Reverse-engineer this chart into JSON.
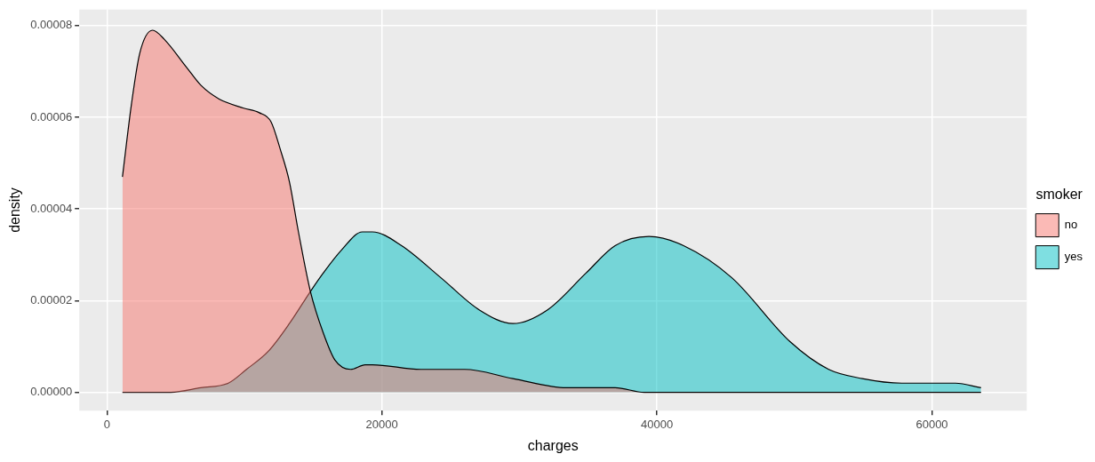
{
  "chart_data": {
    "type": "area",
    "xlabel": "charges",
    "ylabel": "density",
    "legend_title": "smoker",
    "legend": "right",
    "grid": true,
    "line_style": "solid",
    "marker": "none",
    "xlim": [
      -2010,
      66900
    ],
    "xticks": [
      0,
      20000,
      40000,
      60000
    ],
    "ylim": [
      -4e-06,
      8.35e-05
    ],
    "yticks": [
      {
        "value": 0,
        "label": "0.00000"
      },
      {
        "value": 2e-05,
        "label": "0.00002"
      },
      {
        "value": 4e-05,
        "label": "0.00004"
      },
      {
        "value": 6e-05,
        "label": "0.00006"
      },
      {
        "value": 8e-05,
        "label": "0.00008"
      }
    ],
    "series": [
      {
        "name": "no",
        "color": "#f8766d",
        "x": [
          1130,
          1790,
          2390,
          3320,
          4180,
          5770,
          6830,
          8160,
          9950,
          11080,
          11940,
          12610,
          13270,
          13930,
          14800,
          15730,
          16590,
          17720,
          18780,
          19310,
          22830,
          26010,
          29530,
          33440,
          36960,
          39080,
          63570
        ],
        "values": [
          4.7e-05,
          6.3e-05,
          7.4e-05,
          7.9e-05,
          7.7e-05,
          7.1e-05,
          6.7e-05,
          6.4e-05,
          6.2e-05,
          6.1e-05,
          5.9e-05,
          5.3e-05,
          4.6e-05,
          3.5e-05,
          2.2e-05,
          1.3e-05,
          7e-06,
          5e-06,
          6e-06,
          6e-06,
          5e-06,
          5e-06,
          3e-06,
          1e-06,
          1e-06,
          0,
          0
        ]
      },
      {
        "name": "yes",
        "color": "#00bfc4",
        "x": [
          1130,
          4640,
          6830,
          8830,
          10150,
          11750,
          13270,
          14800,
          15730,
          17050,
          18580,
          19310,
          21430,
          24290,
          27070,
          29530,
          32050,
          34840,
          36960,
          39420,
          41940,
          45450,
          49700,
          52490,
          54940,
          57800,
          59190,
          61710,
          63570
        ],
        "values": [
          0,
          0,
          1e-06,
          2e-06,
          5e-06,
          9e-06,
          1.5e-05,
          2.2e-05,
          2.6e-05,
          3.1e-05,
          3.5e-05,
          3.5e-05,
          3.2e-05,
          2.5e-05,
          1.8e-05,
          1.5e-05,
          1.8e-05,
          2.6e-05,
          3.2e-05,
          3.4e-05,
          3.2e-05,
          2.5e-05,
          1.1e-05,
          5e-06,
          3e-06,
          2e-06,
          2e-06,
          2e-06,
          1e-06
        ]
      }
    ]
  }
}
